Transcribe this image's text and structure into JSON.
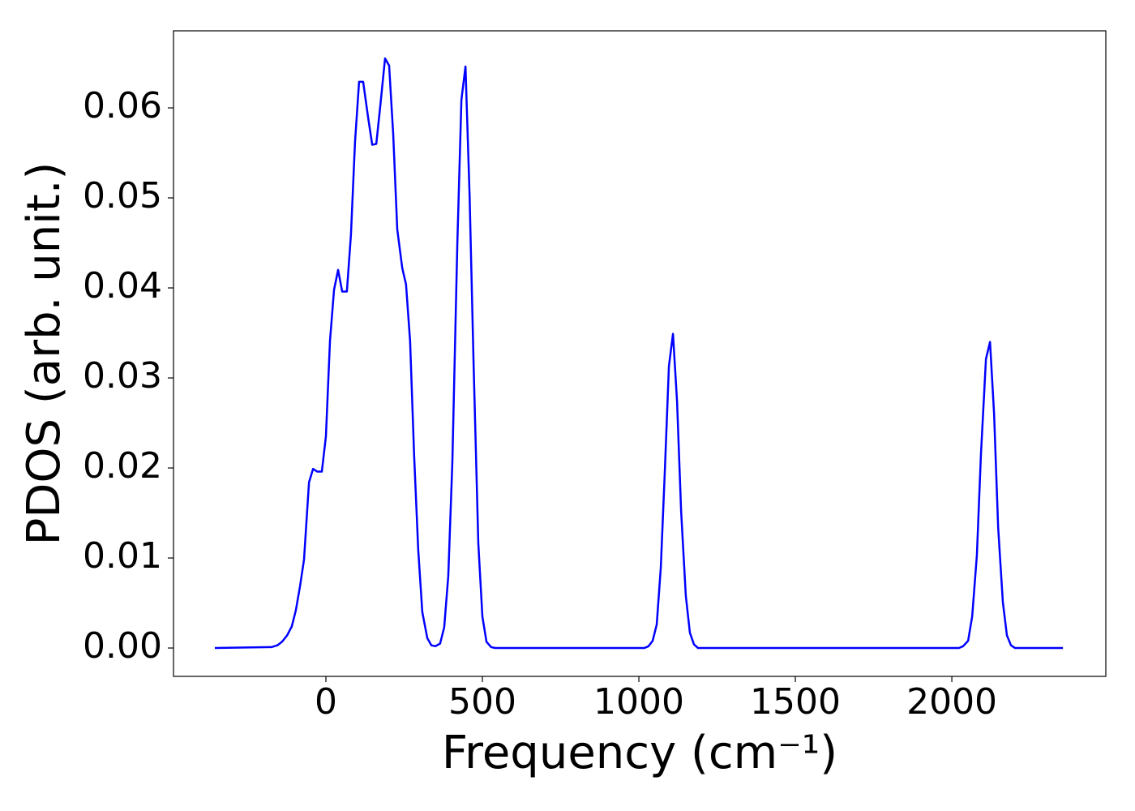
{
  "chart_data": {
    "type": "line",
    "xlabel": "Frequency (cm⁻¹)",
    "ylabel": "PDOS (arb. unit.)",
    "x": [
      -355,
      -174,
      -155,
      -140,
      -124,
      -109,
      -96,
      -83,
      -70,
      -54,
      -41,
      -28,
      -13,
      0,
      13,
      26,
      39,
      52,
      67,
      80,
      93,
      106,
      119,
      135,
      148,
      161,
      174,
      189,
      202,
      215,
      228,
      244,
      256,
      269,
      282,
      295,
      308,
      324,
      337,
      350,
      365,
      378,
      391,
      404,
      420,
      433,
      446,
      459,
      472,
      487,
      500,
      513,
      528,
      541,
      1018,
      1031,
      1044,
      1057,
      1070,
      1083,
      1096,
      1109,
      1122,
      1135,
      1150,
      1163,
      1176,
      1189,
      2023,
      2036,
      2052,
      2065,
      2080,
      2093,
      2109,
      2122,
      2135,
      2148,
      2163,
      2176,
      2189,
      2202,
      2355
    ],
    "series": [
      {
        "color": "#0000ff",
        "values": [
          0,
          0.0001,
          0.0003,
          0.0007,
          0.0014,
          0.0024,
          0.0042,
          0.0068,
          0.0098,
          0.0184,
          0.0199,
          0.0196,
          0.0196,
          0.0235,
          0.0341,
          0.0398,
          0.042,
          0.0396,
          0.0396,
          0.0459,
          0.0562,
          0.0629,
          0.0629,
          0.0589,
          0.0559,
          0.056,
          0.0603,
          0.0655,
          0.0647,
          0.0571,
          0.0465,
          0.0422,
          0.0404,
          0.0341,
          0.0213,
          0.0109,
          0.004,
          0.0011,
          0.0003,
          0.0002,
          0.0005,
          0.0023,
          0.008,
          0.0206,
          0.045,
          0.0609,
          0.0646,
          0.0504,
          0.0314,
          0.0116,
          0.0035,
          0.0007,
          0.0001,
          0,
          0,
          0.0002,
          0.0008,
          0.0026,
          0.0089,
          0.0197,
          0.0313,
          0.0349,
          0.0274,
          0.0152,
          0.0058,
          0.0017,
          0.0004,
          0,
          0,
          0.0002,
          0.0008,
          0.0035,
          0.0103,
          0.0215,
          0.0321,
          0.034,
          0.026,
          0.0134,
          0.0051,
          0.0014,
          0.0003,
          0,
          0
        ]
      }
    ],
    "xlim": [
      -487,
      2492
    ],
    "ylim": [
      -0.00315,
      0.06856
    ],
    "xticks": [
      0,
      500,
      1000,
      1500,
      2000
    ],
    "yticks": [
      {
        "value": 0,
        "label": "0.00"
      },
      {
        "value": 0.01,
        "label": "0.01"
      },
      {
        "value": 0.02,
        "label": "0.02"
      },
      {
        "value": 0.03,
        "label": "0.03"
      },
      {
        "value": 0.04,
        "label": "0.04"
      },
      {
        "value": 0.05,
        "label": "0.05"
      },
      {
        "value": 0.06,
        "label": "0.06"
      }
    ],
    "grid": false
  }
}
